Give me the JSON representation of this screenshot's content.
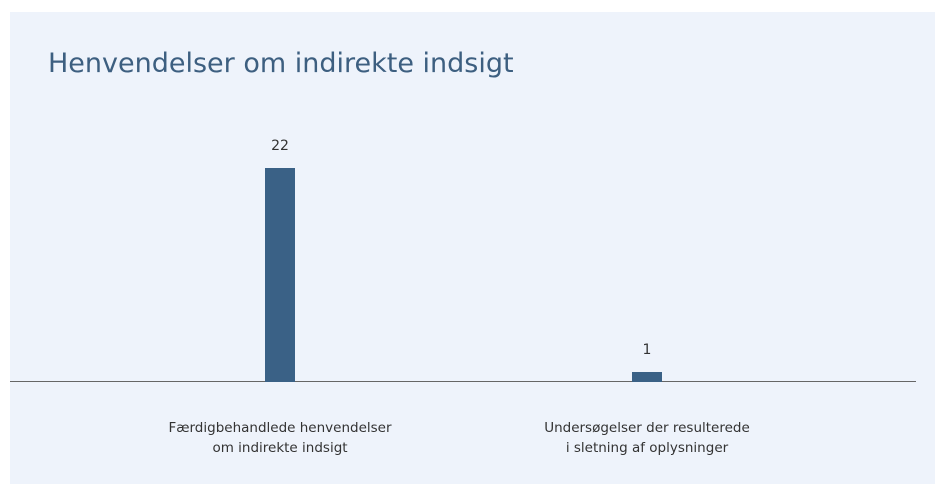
{
  "chart_data": {
    "type": "bar",
    "title": "Henvendelser om indirekte indsigt",
    "categories": [
      "Færdigbehandlede henvendelser\nom indirekte indsigt",
      "Undersøgelser der resulterede\ni sletning af oplysninger"
    ],
    "values": [
      22,
      1
    ],
    "color": "#3a6186"
  }
}
